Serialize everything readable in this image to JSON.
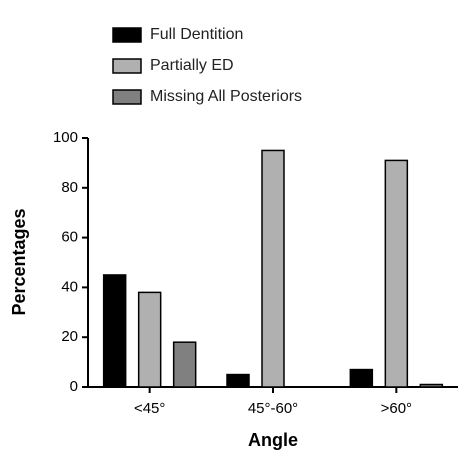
{
  "chart_data": {
    "type": "bar",
    "categories": [
      "<45°",
      "45°-60°",
      ">60°"
    ],
    "series": [
      {
        "name": "Full Dentition",
        "color": "#000000",
        "values": [
          45,
          5,
          7
        ]
      },
      {
        "name": "Partially ED",
        "color": "#b0b0b0",
        "values": [
          38,
          95,
          91
        ]
      },
      {
        "name": "Missing All Posteriors",
        "color": "#808080",
        "values": [
          18,
          0,
          1
        ]
      }
    ],
    "x_label": "Angle",
    "y_label": "Percentages",
    "ylim": [
      0,
      100
    ],
    "yticks": [
      0,
      20,
      40,
      60,
      80,
      100
    ],
    "grid": false
  }
}
